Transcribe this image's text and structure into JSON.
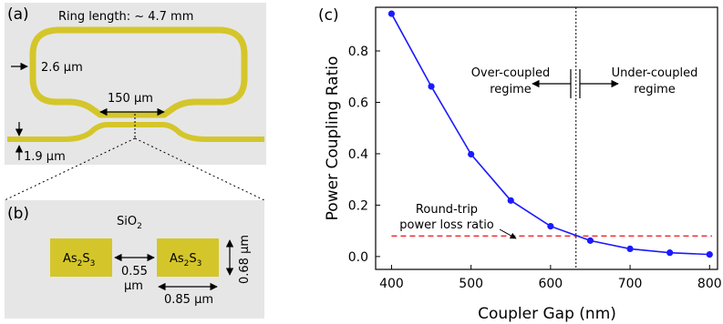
{
  "colors": {
    "panel_bg": "#e6e6e6",
    "waveguide": "#d4c62a",
    "curve": "#1a1aff",
    "loss_line": "#e8262b"
  },
  "panel_a": {
    "label": "(a)",
    "ring_length": "Ring length: ~ 4.7 mm",
    "width_ring": "2.6 µm",
    "coupler_length": "150 µm",
    "width_bus": "1.9 µm"
  },
  "panel_b": {
    "label": "(b)",
    "cladding_main": "SiO",
    "cladding_sub": "2",
    "core_left": {
      "base": "As",
      "sub1": "2",
      "mid": "S",
      "sub2": "3"
    },
    "core_right": {
      "base": "As",
      "sub1": "2",
      "mid": "S",
      "sub2": "3"
    },
    "gap_value": "0.55",
    "gap_unit": "µm",
    "width_label": "0.85 µm",
    "height_label": "0.68 µm"
  },
  "panel_c": {
    "label": "(c)",
    "over_line1": "Over-coupled",
    "over_line2": "regime",
    "under_line1": "Under-coupled",
    "under_line2": "regime",
    "loss_line1": "Round-trip",
    "loss_line2": "power loss ratio"
  },
  "chart_data": {
    "type": "line",
    "xlabel": "Coupler Gap (nm)",
    "ylabel": "Power Coupling Ratio",
    "xlim": [
      380,
      810
    ],
    "ylim": [
      -0.05,
      0.97
    ],
    "xticks": [
      400,
      500,
      600,
      700,
      800
    ],
    "yticks": [
      0.0,
      0.2,
      0.4,
      0.6,
      0.8
    ],
    "ytick_labels": [
      "0.0",
      "0.2",
      "0.4",
      "0.6",
      "0.8"
    ],
    "series": [
      {
        "x": [
          400,
          450,
          500,
          550,
          600,
          650,
          700,
          750,
          800
        ],
        "y": [
          0.945,
          0.662,
          0.398,
          0.218,
          0.118,
          0.062,
          0.03,
          0.015,
          0.008
        ]
      }
    ],
    "loss_level": 0.08,
    "critical_gap": 632
  }
}
